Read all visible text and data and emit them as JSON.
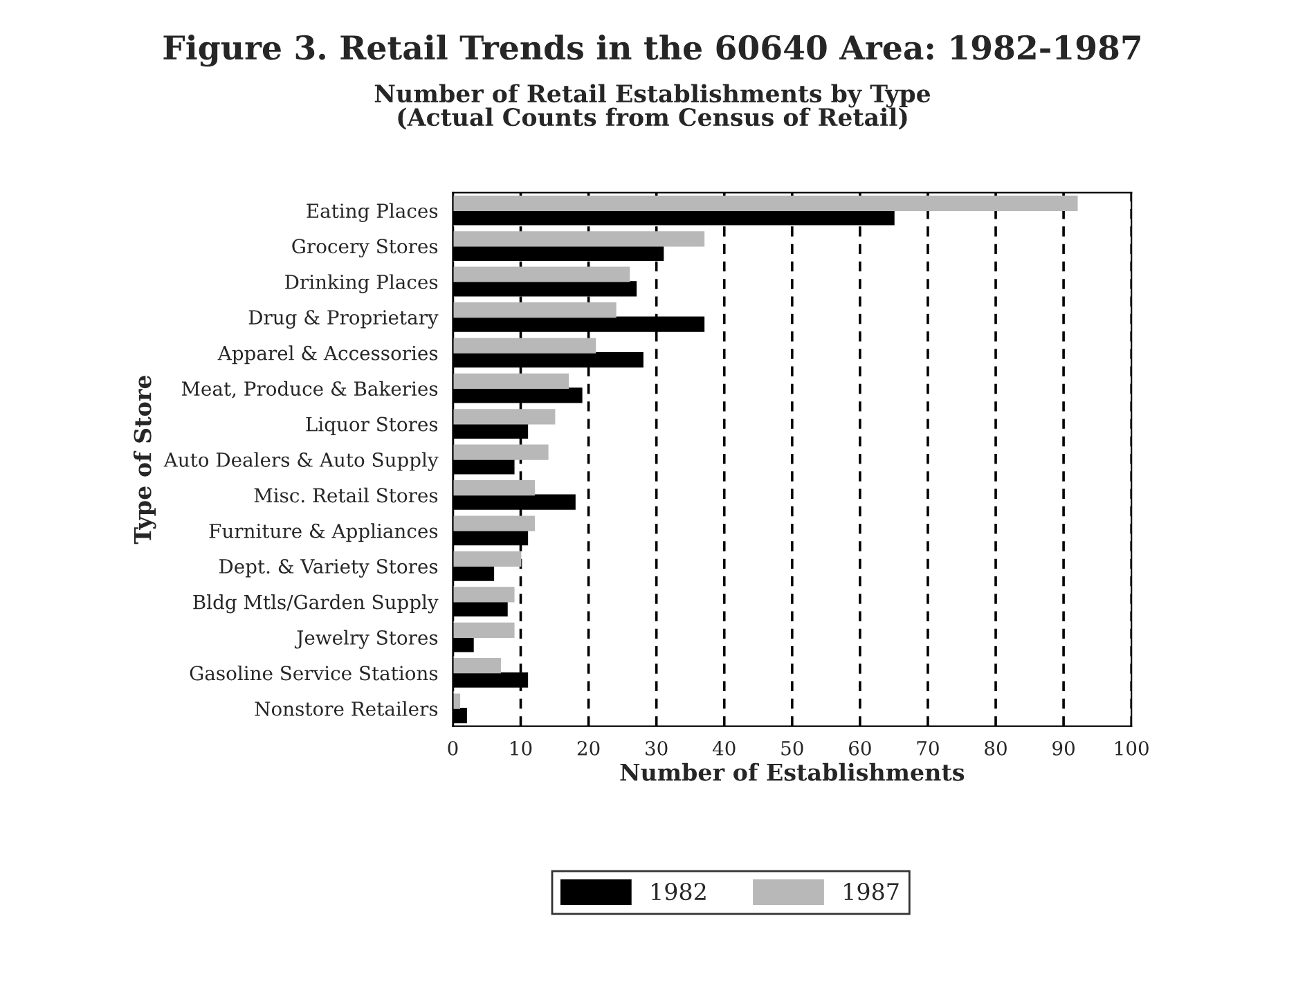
{
  "chart_data": {
    "type": "bar",
    "orientation": "horizontal",
    "title": "Figure 3. Retail Trends in the 60640 Area: 1982-1987",
    "subtitle": "Number of Retail Establishments by Type\n(Actual Counts from Census of Retail)",
    "xlabel": "Number of Establishments",
    "ylabel": "Type of Store",
    "categories": [
      "Eating Places",
      "Grocery Stores",
      "Drinking Places",
      "Drug & Proprietary",
      "Apparel & Accessories",
      "Meat, Produce & Bakeries",
      "Liquor Stores",
      "Auto Dealers & Auto Supply",
      "Misc. Retail Stores",
      "Furniture & Appliances",
      "Dept. & Variety Stores",
      "Bldg Mtls/Garden Supply",
      "Jewelry Stores",
      "Gasoline Service Stations",
      "Nonstore Retailers"
    ],
    "series": [
      {
        "name": "1982",
        "color": "#000000",
        "values": [
          65,
          31,
          27,
          37,
          28,
          19,
          11,
          9,
          18,
          11,
          6,
          8,
          3,
          11,
          2
        ]
      },
      {
        "name": "1987",
        "color": "#b8b8b8",
        "values": [
          92,
          37,
          26,
          24,
          21,
          17,
          15,
          14,
          12,
          12,
          10,
          9,
          9,
          7,
          1
        ]
      }
    ],
    "xlim": [
      0,
      100
    ],
    "xticks": [
      0,
      10,
      20,
      30,
      40,
      50,
      60,
      70,
      80,
      90,
      100
    ],
    "grid": "x",
    "legend": "bottom"
  }
}
